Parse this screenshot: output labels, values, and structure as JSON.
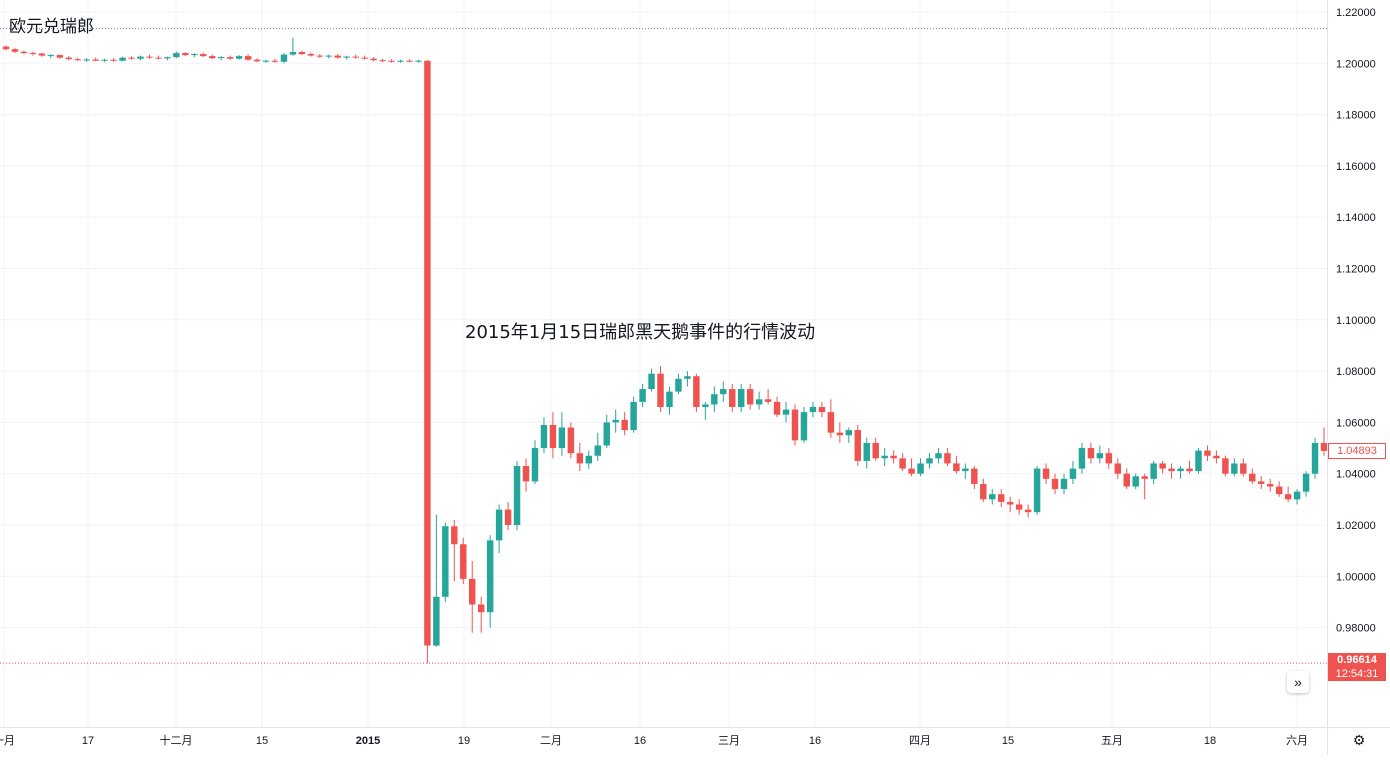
{
  "chart_data": {
    "type": "candlestick",
    "title": "欧元兑瑞郎",
    "annotation": "2015年1月15日瑞郎黑天鹅事件的行情波动",
    "ylim": [
      0.96,
      1.222
    ],
    "y_ticks": [
      "1.22000",
      "1.20000",
      "1.18000",
      "1.16000",
      "1.14000",
      "1.12000",
      "1.10000",
      "1.08000",
      "1.06000",
      "1.04000",
      "1.02000",
      "1.00000",
      "0.98000"
    ],
    "x_tick_labels": [
      "一月",
      "17",
      "十二月",
      "15",
      "2015",
      "19",
      "二月",
      "16",
      "三月",
      "16",
      "四月",
      "15",
      "五月",
      "18",
      "六月"
    ],
    "x_tick_bold": "2015",
    "high_dotted_level": 1.2135,
    "low_dotted_level": 0.96614,
    "low_label": "0.96614",
    "low_time": "12:54:31",
    "last_price_label": "1.04893",
    "colors": {
      "up": "#26a69a",
      "down": "#ef5350",
      "grid": "#f0f3fa",
      "text": "#131722"
    },
    "candles": [
      [
        1.2065,
        1.207,
        1.205,
        1.2055
      ],
      [
        1.2055,
        1.206,
        1.204,
        1.2045
      ],
      [
        1.2045,
        1.205,
        1.2035,
        1.204
      ],
      [
        1.204,
        1.2045,
        1.203,
        1.2038
      ],
      [
        1.2038,
        1.2042,
        1.2025,
        1.203
      ],
      [
        1.203,
        1.2036,
        1.202,
        1.2032
      ],
      [
        1.2032,
        1.2035,
        1.2018,
        1.2022
      ],
      [
        1.2022,
        1.2028,
        1.2012,
        1.2016
      ],
      [
        1.2016,
        1.2022,
        1.2008,
        1.2012
      ],
      [
        1.2012,
        1.202,
        1.2005,
        1.2015
      ],
      [
        1.2015,
        1.2022,
        1.2008,
        1.201
      ],
      [
        1.201,
        1.2018,
        1.2004,
        1.2014
      ],
      [
        1.2014,
        1.202,
        1.2006,
        1.201
      ],
      [
        1.201,
        1.2026,
        1.2008,
        1.2022
      ],
      [
        1.2022,
        1.2028,
        1.2014,
        1.2018
      ],
      [
        1.2018,
        1.203,
        1.2012,
        1.2026
      ],
      [
        1.2026,
        1.2034,
        1.2018,
        1.2022
      ],
      [
        1.2022,
        1.203,
        1.2015,
        1.2019
      ],
      [
        1.2019,
        1.2026,
        1.2012,
        1.2024
      ],
      [
        1.2024,
        1.2046,
        1.202,
        1.204
      ],
      [
        1.204,
        1.2044,
        1.2028,
        1.2032
      ],
      [
        1.2032,
        1.204,
        1.2024,
        1.2036
      ],
      [
        1.2036,
        1.2042,
        1.2024,
        1.2028
      ],
      [
        1.2028,
        1.2034,
        1.2016,
        1.202
      ],
      [
        1.202,
        1.2028,
        1.2012,
        1.2024
      ],
      [
        1.2024,
        1.203,
        1.2014,
        1.2018
      ],
      [
        1.2018,
        1.2032,
        1.2014,
        1.2028
      ],
      [
        1.2028,
        1.2036,
        1.201,
        1.2014
      ],
      [
        1.2014,
        1.202,
        1.2004,
        1.2008
      ],
      [
        1.2008,
        1.2014,
        1.2002,
        1.201
      ],
      [
        1.201,
        1.2018,
        1.2002,
        1.2006
      ],
      [
        1.2006,
        1.204,
        1.2,
        1.2034
      ],
      [
        1.2034,
        1.21,
        1.2028,
        1.2044
      ],
      [
        1.2044,
        1.205,
        1.2032,
        1.2036
      ],
      [
        1.2036,
        1.2042,
        1.2026,
        1.203
      ],
      [
        1.203,
        1.2036,
        1.202,
        1.2026
      ],
      [
        1.2026,
        1.2034,
        1.2018,
        1.203
      ],
      [
        1.203,
        1.2036,
        1.2018,
        1.2022
      ],
      [
        1.2022,
        1.203,
        1.2014,
        1.2026
      ],
      [
        1.2026,
        1.2034,
        1.2018,
        1.2022
      ],
      [
        1.2022,
        1.203,
        1.2014,
        1.2018
      ],
      [
        1.2018,
        1.2024,
        1.2008,
        1.2012
      ],
      [
        1.2012,
        1.2018,
        1.2004,
        1.201
      ],
      [
        1.201,
        1.2016,
        1.2002,
        1.2008
      ],
      [
        1.2008,
        1.2014,
        1.2002,
        1.201
      ],
      [
        1.201,
        1.2016,
        1.2004,
        1.2008
      ],
      [
        1.2008,
        1.2014,
        1.2002,
        1.201
      ],
      [
        1.201,
        1.2012,
        0.9661,
        0.973
      ],
      [
        0.973,
        1.024,
        0.9725,
        0.992
      ],
      [
        0.992,
        1.021,
        0.99,
        1.0195
      ],
      [
        1.0195,
        1.022,
        0.998,
        1.0125
      ],
      [
        1.0125,
        1.015,
        0.997,
        0.999
      ],
      [
        0.999,
        1.006,
        0.978,
        0.989
      ],
      [
        0.989,
        0.992,
        0.978,
        0.986
      ],
      [
        0.986,
        1.016,
        0.98,
        1.014
      ],
      [
        1.014,
        1.028,
        1.009,
        1.026
      ],
      [
        1.026,
        1.029,
        1.018,
        1.02
      ],
      [
        1.02,
        1.045,
        1.018,
        1.043
      ],
      [
        1.043,
        1.046,
        1.033,
        1.037
      ],
      [
        1.037,
        1.053,
        1.036,
        1.05
      ],
      [
        1.05,
        1.062,
        1.048,
        1.059
      ],
      [
        1.059,
        1.064,
        1.046,
        1.05
      ],
      [
        1.05,
        1.064,
        1.047,
        1.058
      ],
      [
        1.058,
        1.06,
        1.046,
        1.048
      ],
      [
        1.048,
        1.052,
        1.041,
        1.044
      ],
      [
        1.044,
        1.049,
        1.042,
        1.047
      ],
      [
        1.047,
        1.056,
        1.045,
        1.051
      ],
      [
        1.051,
        1.063,
        1.05,
        1.06
      ],
      [
        1.06,
        1.065,
        1.056,
        1.061
      ],
      [
        1.061,
        1.064,
        1.055,
        1.057
      ],
      [
        1.057,
        1.07,
        1.056,
        1.068
      ],
      [
        1.068,
        1.075,
        1.066,
        1.073
      ],
      [
        1.073,
        1.081,
        1.072,
        1.079
      ],
      [
        1.079,
        1.082,
        1.064,
        1.066
      ],
      [
        1.066,
        1.074,
        1.063,
        1.072
      ],
      [
        1.072,
        1.079,
        1.071,
        1.077
      ],
      [
        1.077,
        1.08,
        1.074,
        1.078
      ],
      [
        1.078,
        1.079,
        1.064,
        1.066
      ],
      [
        1.066,
        1.068,
        1.061,
        1.067
      ],
      [
        1.067,
        1.074,
        1.064,
        1.071
      ],
      [
        1.071,
        1.076,
        1.068,
        1.073
      ],
      [
        1.073,
        1.075,
        1.064,
        1.066
      ],
      [
        1.066,
        1.075,
        1.064,
        1.073
      ],
      [
        1.073,
        1.075,
        1.065,
        1.067
      ],
      [
        1.067,
        1.072,
        1.065,
        1.069
      ],
      [
        1.069,
        1.073,
        1.067,
        1.068
      ],
      [
        1.068,
        1.07,
        1.062,
        1.063
      ],
      [
        1.063,
        1.068,
        1.06,
        1.065
      ],
      [
        1.065,
        1.067,
        1.051,
        1.053
      ],
      [
        1.053,
        1.066,
        1.052,
        1.064
      ],
      [
        1.064,
        1.068,
        1.062,
        1.066
      ],
      [
        1.066,
        1.068,
        1.062,
        1.064
      ],
      [
        1.064,
        1.069,
        1.054,
        1.056
      ],
      [
        1.056,
        1.06,
        1.052,
        1.055
      ],
      [
        1.055,
        1.058,
        1.052,
        1.057
      ],
      [
        1.057,
        1.059,
        1.043,
        1.045
      ],
      [
        1.045,
        1.054,
        1.042,
        1.052
      ],
      [
        1.052,
        1.054,
        1.045,
        1.046
      ],
      [
        1.046,
        1.05,
        1.043,
        1.047
      ],
      [
        1.047,
        1.049,
        1.044,
        1.046
      ],
      [
        1.046,
        1.048,
        1.041,
        1.042
      ],
      [
        1.042,
        1.046,
        1.039,
        1.04
      ],
      [
        1.04,
        1.046,
        1.039,
        1.044
      ],
      [
        1.044,
        1.048,
        1.042,
        1.046
      ],
      [
        1.046,
        1.05,
        1.044,
        1.048
      ],
      [
        1.048,
        1.05,
        1.043,
        1.044
      ],
      [
        1.044,
        1.047,
        1.04,
        1.041
      ],
      [
        1.041,
        1.044,
        1.038,
        1.042
      ],
      [
        1.042,
        1.043,
        1.034,
        1.036
      ],
      [
        1.036,
        1.038,
        1.029,
        1.03
      ],
      [
        1.03,
        1.034,
        1.028,
        1.032
      ],
      [
        1.032,
        1.034,
        1.027,
        1.029
      ],
      [
        1.029,
        1.031,
        1.025,
        1.028
      ],
      [
        1.028,
        1.03,
        1.024,
        1.026
      ],
      [
        1.026,
        1.028,
        1.023,
        1.025
      ],
      [
        1.025,
        1.043,
        1.024,
        1.042
      ],
      [
        1.042,
        1.044,
        1.036,
        1.038
      ],
      [
        1.038,
        1.04,
        1.032,
        1.034
      ],
      [
        1.034,
        1.04,
        1.032,
        1.038
      ],
      [
        1.038,
        1.045,
        1.036,
        1.042
      ],
      [
        1.042,
        1.052,
        1.04,
        1.05
      ],
      [
        1.05,
        1.052,
        1.044,
        1.046
      ],
      [
        1.046,
        1.051,
        1.044,
        1.048
      ],
      [
        1.048,
        1.05,
        1.042,
        1.044
      ],
      [
        1.044,
        1.046,
        1.038,
        1.04
      ],
      [
        1.04,
        1.042,
        1.034,
        1.035
      ],
      [
        1.035,
        1.04,
        1.034,
        1.039
      ],
      [
        1.039,
        1.04,
        1.03,
        1.038
      ],
      [
        1.038,
        1.045,
        1.036,
        1.044
      ],
      [
        1.044,
        1.045,
        1.04,
        1.042
      ],
      [
        1.042,
        1.044,
        1.038,
        1.041
      ],
      [
        1.041,
        1.043,
        1.038,
        1.042
      ],
      [
        1.042,
        1.045,
        1.04,
        1.041
      ],
      [
        1.041,
        1.05,
        1.04,
        1.049
      ],
      [
        1.049,
        1.051,
        1.045,
        1.047
      ],
      [
        1.047,
        1.049,
        1.044,
        1.046
      ],
      [
        1.046,
        1.047,
        1.039,
        1.04
      ],
      [
        1.04,
        1.046,
        1.039,
        1.044
      ],
      [
        1.044,
        1.046,
        1.039,
        1.04
      ],
      [
        1.04,
        1.042,
        1.036,
        1.037
      ],
      [
        1.037,
        1.039,
        1.034,
        1.036
      ],
      [
        1.036,
        1.038,
        1.033,
        1.035
      ],
      [
        1.035,
        1.037,
        1.031,
        1.032
      ],
      [
        1.032,
        1.035,
        1.029,
        1.03
      ],
      [
        1.03,
        1.034,
        1.028,
        1.033
      ],
      [
        1.033,
        1.041,
        1.031,
        1.04
      ],
      [
        1.04,
        1.054,
        1.038,
        1.052
      ],
      [
        1.052,
        1.058,
        1.047,
        1.0489
      ]
    ]
  }
}
